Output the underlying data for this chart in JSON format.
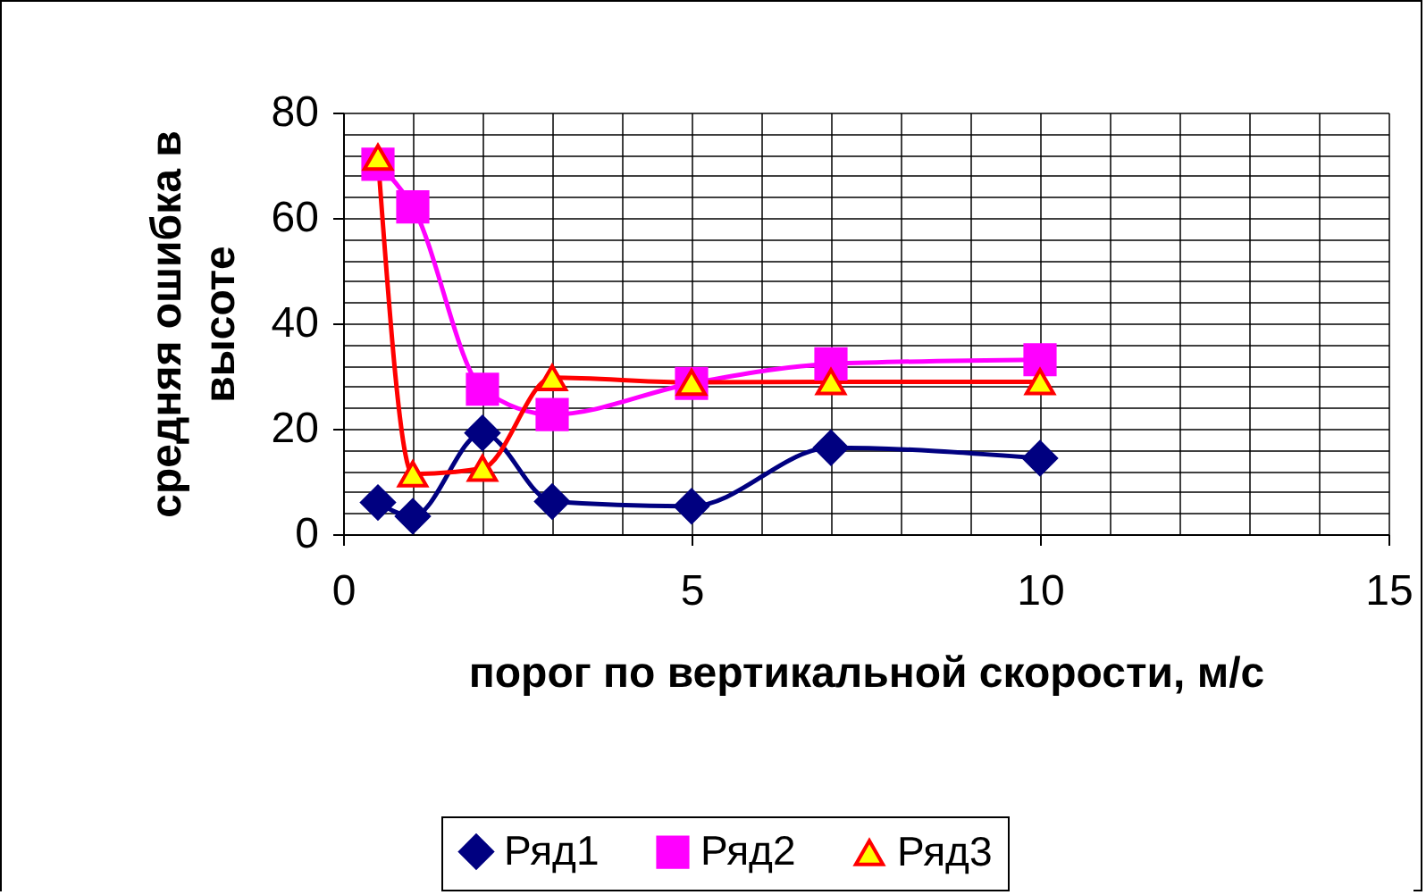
{
  "chart_data": {
    "type": "line",
    "xlabel": "порог по вертикальной скорости, м/с",
    "ylabel": "средняя ошибка в высоте",
    "xlim": [
      0,
      15
    ],
    "ylim": [
      0,
      80
    ],
    "xticks": [
      0,
      {
        "value": 1,
        "label": null
      },
      {
        "value": 2,
        "label": null
      },
      {
        "value": 3,
        "label": null
      },
      {
        "value": 4,
        "label": null
      },
      5,
      {
        "value": 6,
        "label": null
      },
      {
        "value": 7,
        "label": null
      },
      {
        "value": 8,
        "label": null
      },
      {
        "value": 9,
        "label": null
      },
      10,
      {
        "value": 11,
        "label": null
      },
      {
        "value": 12,
        "label": null
      },
      {
        "value": 13,
        "label": null
      },
      {
        "value": 14,
        "label": null
      },
      15
    ],
    "yticks": [
      0,
      {
        "value": 4,
        "label": null
      },
      {
        "value": 8,
        "label": null
      },
      {
        "value": 12,
        "label": null
      },
      {
        "value": 16,
        "label": null
      },
      20,
      {
        "value": 24,
        "label": null
      },
      {
        "value": 28,
        "label": null
      },
      {
        "value": 32,
        "label": null
      },
      {
        "value": 36,
        "label": null
      },
      40,
      {
        "value": 44,
        "label": null
      },
      {
        "value": 48,
        "label": null
      },
      {
        "value": 52,
        "label": null
      },
      {
        "value": 56,
        "label": null
      },
      60,
      {
        "value": 64,
        "label": null
      },
      {
        "value": 68,
        "label": null
      },
      {
        "value": 72,
        "label": null
      },
      {
        "value": 76,
        "label": null
      },
      80
    ],
    "grid": true,
    "legend": "bottom",
    "x": [
      0.5,
      1,
      2,
      3,
      5,
      7,
      10
    ],
    "series": [
      {
        "name": "Ряд1",
        "color": "#000080",
        "marker": "diamond",
        "values": [
          6.0,
          3.4,
          19.2,
          6.2,
          5.3,
          16.4,
          14.4
        ]
      },
      {
        "name": "Ряд2",
        "color": "#ff00ff",
        "marker": "square",
        "values": [
          70.2,
          62.1,
          27.5,
          22.7,
          28.6,
          32.3,
          33.1
        ]
      },
      {
        "name": "Ряд3",
        "color": "#ff0000",
        "marker": "triangle",
        "values": [
          71.5,
          11.4,
          12.5,
          29.7,
          28.8,
          28.9,
          28.9
        ]
      }
    ]
  }
}
